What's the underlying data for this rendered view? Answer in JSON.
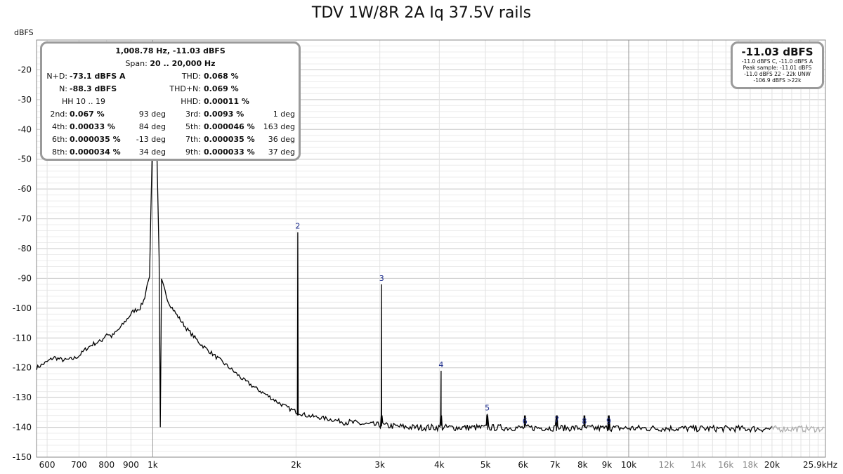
{
  "title": "TDV 1W/8R 2A Iq 37.5V rails",
  "chart_data": {
    "type": "line",
    "title": "TDV 1W/8R 2A Iq 37.5V rails",
    "ylabel": "dBFS",
    "xscale": "log",
    "xlim": [
      570,
      25900
    ],
    "ylim": [
      -150,
      -10
    ],
    "grid": true,
    "y_ticks": [
      "-20",
      "-30",
      "-40",
      "-50",
      "-60",
      "-70",
      "-80",
      "-90",
      "-100",
      "-110",
      "-120",
      "-130",
      "-140",
      "-150"
    ],
    "x_ticks": [
      {
        "v": 600,
        "label": "600"
      },
      {
        "v": 700,
        "label": "700"
      },
      {
        "v": 800,
        "label": "800"
      },
      {
        "v": 900,
        "label": "900"
      },
      {
        "v": 1000,
        "label": "1k"
      },
      {
        "v": 2000,
        "label": "2k"
      },
      {
        "v": 3000,
        "label": "3k"
      },
      {
        "v": 4000,
        "label": "4k"
      },
      {
        "v": 5000,
        "label": "5k"
      },
      {
        "v": 6000,
        "label": "6k"
      },
      {
        "v": 7000,
        "label": "7k"
      },
      {
        "v": 8000,
        "label": "8k"
      },
      {
        "v": 9000,
        "label": "9k"
      },
      {
        "v": 10000,
        "label": "10k"
      },
      {
        "v": 12000,
        "label": "12k"
      },
      {
        "v": 14000,
        "label": "14k"
      },
      {
        "v": 16000,
        "label": "16k"
      },
      {
        "v": 18000,
        "label": "18k"
      },
      {
        "v": 20000,
        "label": "20k"
      },
      {
        "v": 25900,
        "label": "25.9kHz"
      }
    ],
    "fundamental": {
      "f": 1008.78,
      "level": -11.03
    },
    "noise_floor": -140,
    "harmonics": [
      {
        "n": "2",
        "f": 2017,
        "level": -74.5
      },
      {
        "n": "3",
        "f": 3026,
        "level": -92
      },
      {
        "n": "4",
        "f": 4035,
        "level": -121
      },
      {
        "n": "5",
        "f": 5044,
        "level": -135.5
      },
      {
        "n": "6",
        "f": 6053,
        "level": -140
      },
      {
        "n": "7",
        "f": 7061,
        "level": -139.5
      },
      {
        "n": "8",
        "f": 8070,
        "level": -140
      },
      {
        "n": "9",
        "f": 9079,
        "level": -140
      }
    ],
    "skirt": [
      [
        570,
        -120
      ],
      [
        600,
        -118
      ],
      [
        620,
        -116.5
      ],
      [
        650,
        -117.5
      ],
      [
        680,
        -117
      ],
      [
        700,
        -116
      ],
      [
        720,
        -114
      ],
      [
        750,
        -112
      ],
      [
        780,
        -111
      ],
      [
        800,
        -108.5
      ],
      [
        820,
        -109.5
      ],
      [
        850,
        -107
      ],
      [
        880,
        -104
      ],
      [
        910,
        -101
      ],
      [
        940,
        -100
      ],
      [
        960,
        -97
      ],
      [
        980,
        -90
      ]
    ],
    "decay": [
      [
        1040,
        -90
      ],
      [
        1080,
        -98
      ],
      [
        1120,
        -102
      ],
      [
        1180,
        -107
      ],
      [
        1260,
        -112
      ],
      [
        1350,
        -116
      ],
      [
        1450,
        -120
      ],
      [
        1550,
        -124
      ],
      [
        1650,
        -127
      ],
      [
        1750,
        -129.5
      ],
      [
        1850,
        -132
      ],
      [
        1950,
        -134
      ],
      [
        2100,
        -136
      ],
      [
        2300,
        -137
      ],
      [
        2500,
        -138
      ],
      [
        2800,
        -139
      ],
      [
        3500,
        -140
      ],
      [
        20000,
        -140.5
      ]
    ]
  },
  "stats": {
    "freq_line": "1,008.78 Hz, -11.03 dBFS",
    "span_label": "Span:",
    "span_value": "20 .. 20,000 Hz",
    "nd_label": "N+D:",
    "nd_value": "-73.1 dBFS A",
    "thd_label": "THD:",
    "thd_value": "0.068 %",
    "n_label": "N:",
    "n_value": "-88.3 dBFS",
    "thdn_label": "THD+N:",
    "thdn_value": "0.069 %",
    "hh_label": "HH 10 .. 19",
    "hhd_label": "HHD:",
    "hhd_value": "0.00011 %",
    "rows": [
      {
        "l1": "2nd:",
        "v1": "0.067 %",
        "d1": "93 deg",
        "l2": "3rd:",
        "v2": "0.0093 %",
        "d2": "1 deg"
      },
      {
        "l1": "4th:",
        "v1": "0.00033 %",
        "d1": "84 deg",
        "l2": "5th:",
        "v2": "0.000046 %",
        "d2": "163 deg"
      },
      {
        "l1": "6th:",
        "v1": "0.000035 %",
        "d1": "-13 deg",
        "l2": "7th:",
        "v2": "0.000035 %",
        "d2": "36 deg"
      },
      {
        "l1": "8th:",
        "v1": "0.000034 %",
        "d1": "34 deg",
        "l2": "9th:",
        "v2": "0.000033 %",
        "d2": "37 deg"
      }
    ]
  },
  "level_box": {
    "main": "-11.03 dBFS",
    "line1": "-11.0 dBFS C, -11.0 dBFS A",
    "line2": "Peak sample: -11.01 dBFS",
    "line3": "-11.0 dBFS 22 - 22k UNW",
    "line4": "-106.9 dBFS >22k"
  },
  "colors": {
    "trace": "#000000",
    "trace_extended": "#b0b0b0",
    "harmonic_label": "#1a2a8a",
    "grid": "#dddddd",
    "box_border": "#9a9a9a"
  }
}
